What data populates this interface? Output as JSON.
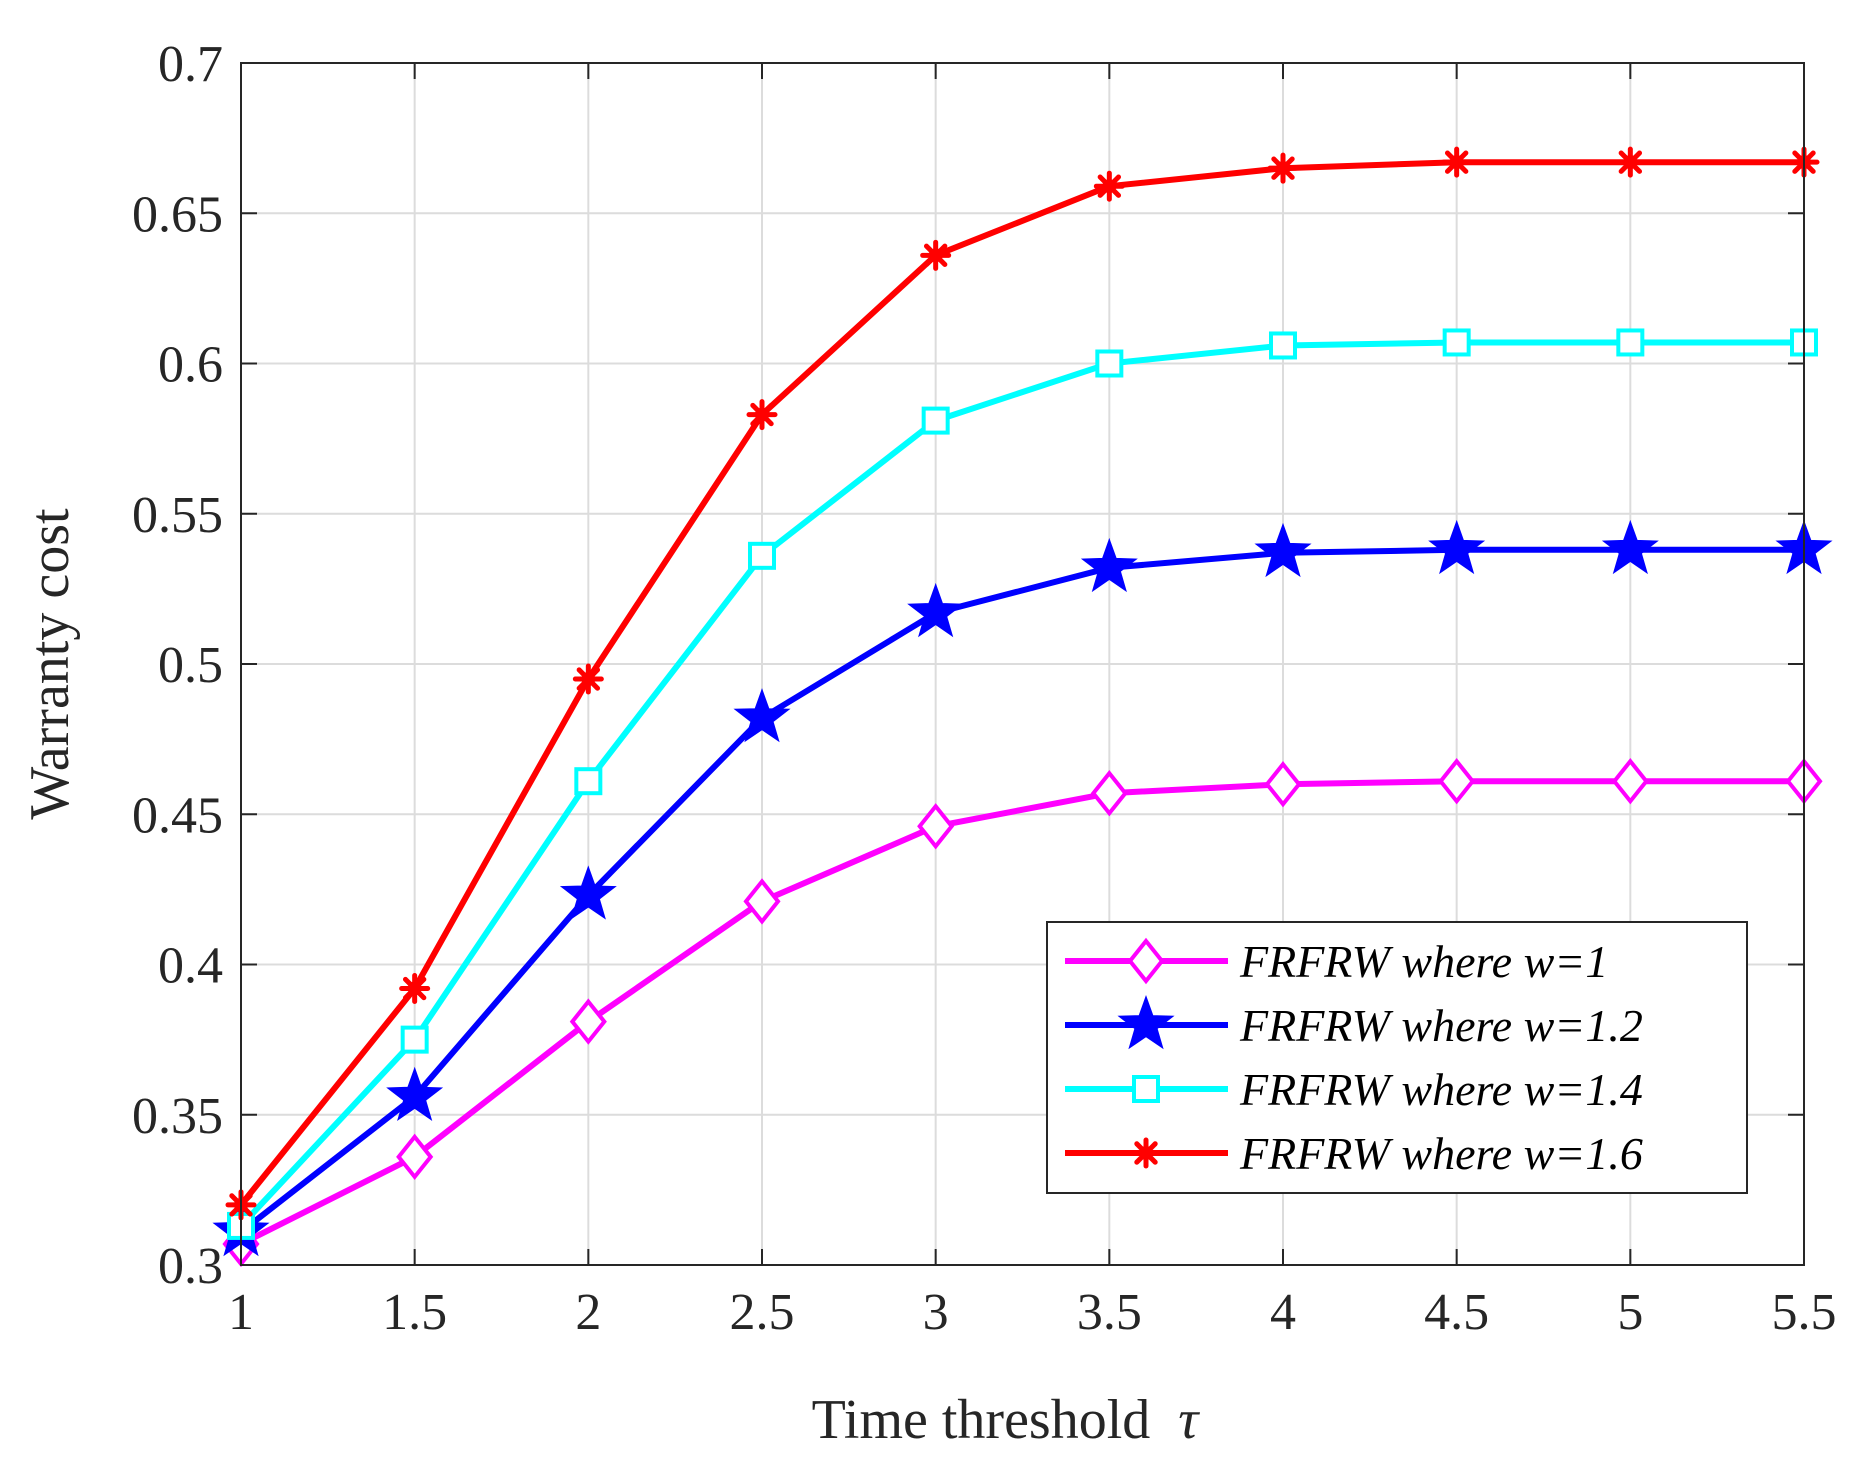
{
  "chart_data": {
    "type": "line",
    "title": "",
    "xlabel": "Time threshold",
    "xlabel_symbol": "τ",
    "ylabel": "Warranty cost",
    "x": [
      1,
      1.5,
      2,
      2.5,
      3,
      3.5,
      4,
      4.5,
      5,
      5.5
    ],
    "xlim": [
      1,
      5.5
    ],
    "ylim": [
      0.3,
      0.7
    ],
    "xticks": [
      "1",
      "1.5",
      "2",
      "2.5",
      "3",
      "3.5",
      "4",
      "4.5",
      "5",
      "5.5"
    ],
    "yticks": [
      "0.3",
      "0.35",
      "0.4",
      "0.45",
      "0.5",
      "0.55",
      "0.6",
      "0.65",
      "0.7"
    ],
    "grid": true,
    "legend_position": "bottom-right",
    "series": [
      {
        "name": "FRFRW where w=1",
        "color": "#ff00ff",
        "marker": "diamond",
        "values": [
          0.307,
          0.336,
          0.381,
          0.421,
          0.446,
          0.457,
          0.46,
          0.461,
          0.461,
          0.461
        ]
      },
      {
        "name": "FRFRW where w=1.2",
        "color": "#0000ff",
        "marker": "pentagram",
        "values": [
          0.311,
          0.356,
          0.423,
          0.482,
          0.517,
          0.532,
          0.537,
          0.538,
          0.538,
          0.538
        ]
      },
      {
        "name": "FRFRW where w=1.4",
        "color": "#00ffff",
        "marker": "square",
        "values": [
          0.313,
          0.375,
          0.461,
          0.536,
          0.581,
          0.6,
          0.606,
          0.607,
          0.607,
          0.607
        ]
      },
      {
        "name": "FRFRW where w=1.6",
        "color": "#ff0000",
        "marker": "asterisk",
        "values": [
          0.32,
          0.392,
          0.495,
          0.583,
          0.636,
          0.659,
          0.665,
          0.667,
          0.667,
          0.667
        ]
      }
    ]
  }
}
